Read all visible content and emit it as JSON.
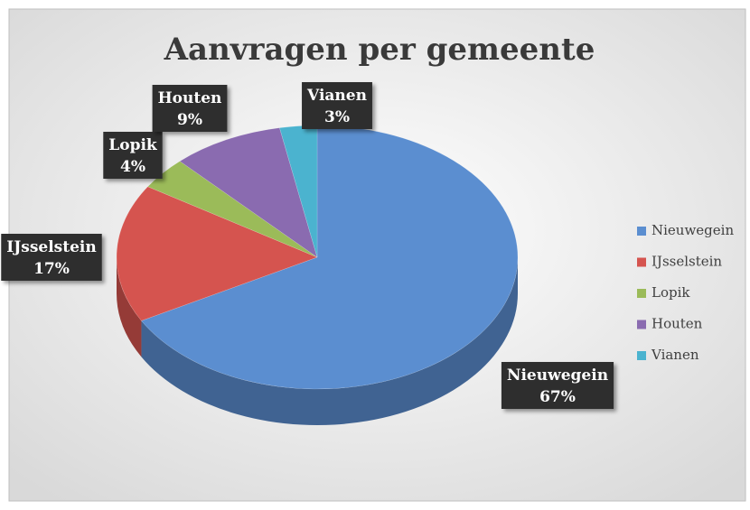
{
  "chart_data": {
    "type": "pie3d",
    "title": "Aanvragen per gemeente",
    "categories": [
      "Nieuwegein",
      "IJsselstein",
      "Lopik",
      "Houten",
      "Vianen"
    ],
    "values": [
      67,
      17,
      4,
      9,
      3
    ],
    "value_labels": [
      "67%",
      "17%",
      "4%",
      "9%",
      "3%"
    ],
    "colors": [
      "#5b8ed0",
      "#d5544f",
      "#9bbb59",
      "#8a6bb0",
      "#4bb3cf"
    ],
    "legend": "right"
  }
}
